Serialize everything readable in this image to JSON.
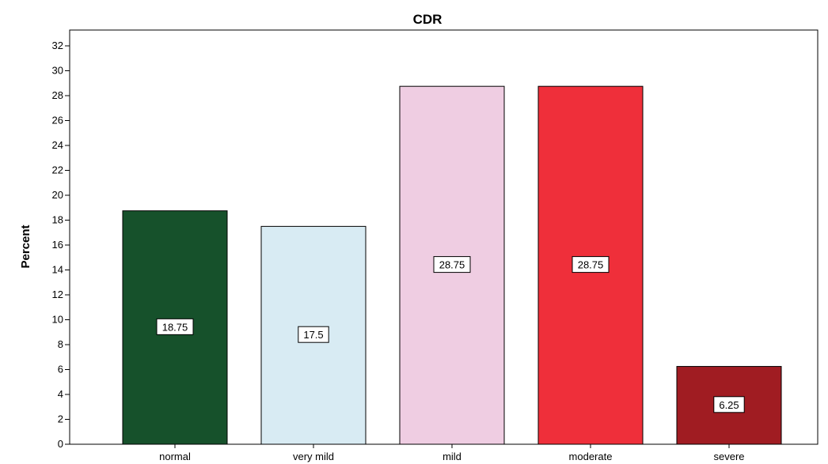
{
  "chart_data": {
    "type": "bar",
    "title": "CDR",
    "xlabel": "",
    "ylabel": "Percent",
    "categories": [
      "normal",
      "very mild",
      "mild",
      "moderate",
      "severe"
    ],
    "values": [
      18.75,
      17.5,
      28.75,
      28.75,
      6.25
    ],
    "value_labels": [
      "18.75",
      "17.5",
      "28.75",
      "28.75",
      "6.25"
    ],
    "bar_colors": [
      "#16512b",
      "#d8ebf3",
      "#efcde2",
      "#ef2f3a",
      "#a01c22"
    ],
    "ylim": [
      0,
      33
    ],
    "yticks": [
      0,
      2,
      4,
      6,
      8,
      10,
      12,
      14,
      16,
      18,
      20,
      22,
      24,
      26,
      28,
      30,
      32
    ],
    "grid": false,
    "legend": "none"
  }
}
